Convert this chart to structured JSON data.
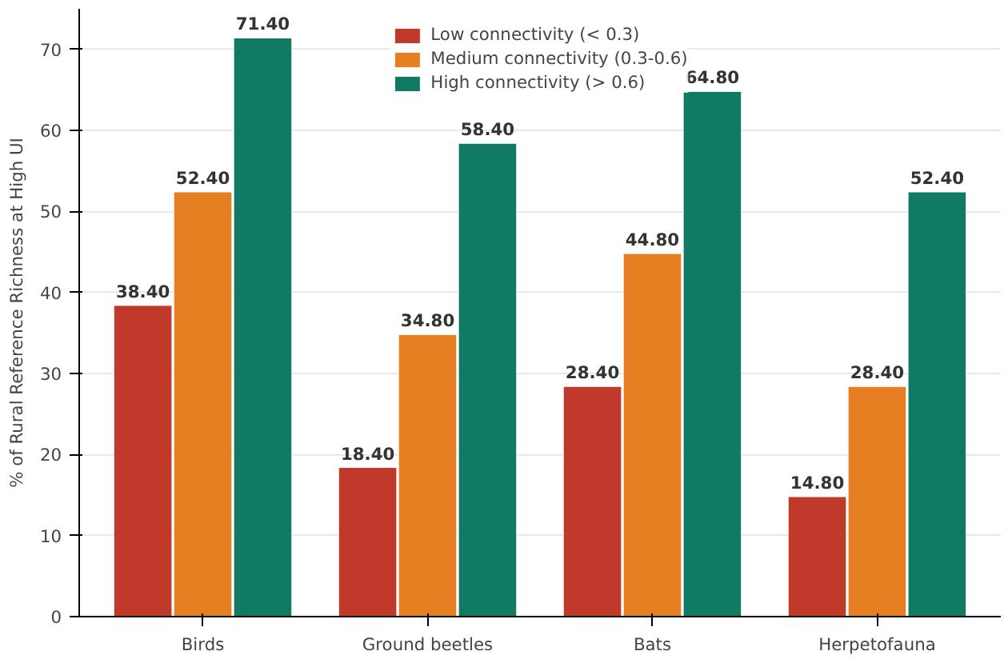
{
  "chart_data": {
    "type": "bar",
    "ylabel": "% of Rural Reference Richness at High UI",
    "categories": [
      "Birds",
      "Ground beetles",
      "Bats",
      "Herpetofauna"
    ],
    "series": [
      {
        "name": "Low connectivity (< 0.3)",
        "color": "#c0392b",
        "values": [
          38.4,
          18.4,
          28.4,
          14.8
        ],
        "value_labels": [
          "38.40",
          "18.40",
          "28.40",
          "14.80"
        ]
      },
      {
        "name": "Medium connectivity (0.3-0.6)",
        "color": "#e67e22",
        "values": [
          52.4,
          34.8,
          44.8,
          28.4
        ],
        "value_labels": [
          "52.40",
          "34.80",
          "44.80",
          "28.40"
        ]
      },
      {
        "name": "High connectivity (> 0.6)",
        "color": "#117a65",
        "values": [
          71.4,
          58.4,
          64.8,
          52.4
        ],
        "value_labels": [
          "71.40",
          "58.40",
          "64.80",
          "52.40"
        ]
      }
    ],
    "ylim": [
      0,
      75
    ],
    "yticks": [
      0,
      10,
      20,
      30,
      40,
      50,
      60,
      70
    ],
    "grid": "y",
    "legend": "top"
  }
}
